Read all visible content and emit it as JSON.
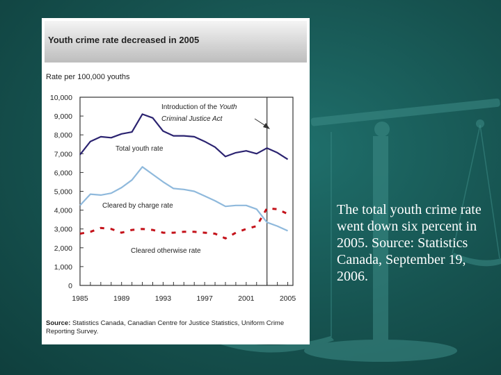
{
  "caption": "The total youth crime rate went down six percent in 2005. Source: Statistics Canada, September 19, 2006.",
  "chart_data": {
    "type": "line",
    "title": "Youth crime rate decreased in 2005",
    "ylabel": "Rate per 100,000 youths",
    "xlabel": "",
    "xlim": [
      1985,
      2005.5
    ],
    "ylim": [
      0,
      10000
    ],
    "x_ticks": [
      1985,
      1989,
      1993,
      1997,
      2001,
      2005
    ],
    "y_ticks": [
      0,
      1000,
      2000,
      3000,
      4000,
      5000,
      6000,
      7000,
      8000,
      9000,
      10000
    ],
    "y_tick_labels": [
      "0",
      "1,000",
      "2,000",
      "3,000",
      "4,000",
      "5,000",
      "6,000",
      "7,000",
      "8,000",
      "9,000",
      "10,000"
    ],
    "grid": false,
    "colors": {
      "total": "#2b2370",
      "cleared_charge": "#8fb9dc",
      "cleared_otherwise": "#c4121a"
    },
    "x": [
      1985,
      1986,
      1987,
      1988,
      1989,
      1990,
      1991,
      1992,
      1993,
      1994,
      1995,
      1996,
      1997,
      1998,
      1999,
      2000,
      2001,
      2002,
      2003,
      2004,
      2005
    ],
    "series": [
      {
        "key": "total",
        "name": "Total youth rate",
        "values": [
          6950,
          7650,
          7900,
          7850,
          8050,
          8150,
          9100,
          8900,
          8200,
          7950,
          7950,
          7900,
          7650,
          7350,
          6850,
          7050,
          7150,
          7000,
          7300,
          7050,
          6700
        ]
      },
      {
        "key": "cleared_charge",
        "name": "Cleared by charge rate",
        "values": [
          4250,
          4850,
          4800,
          4900,
          5200,
          5600,
          6300,
          5900,
          5500,
          5150,
          5100,
          5000,
          4750,
          4500,
          4200,
          4250,
          4250,
          4050,
          3350,
          3150,
          2900
        ]
      },
      {
        "key": "cleared_otherwise",
        "name": "Cleared otherwise rate",
        "dashed": true,
        "values": [
          2750,
          2850,
          3050,
          3000,
          2800,
          2950,
          3000,
          2950,
          2800,
          2800,
          2850,
          2850,
          2800,
          2750,
          2500,
          2800,
          3000,
          3150,
          4100,
          4050,
          3800
        ]
      }
    ],
    "annotation": {
      "text_plain": "Introduction of the ",
      "text_italic_1": "Youth",
      "text_italic_2": "Criminal Justice Act",
      "x": 2003
    },
    "source_label": "Source:",
    "source_text": "Statistics Canada, Canadian Centre for Justice Statistics, Uniform Crime Reporting Survey."
  }
}
